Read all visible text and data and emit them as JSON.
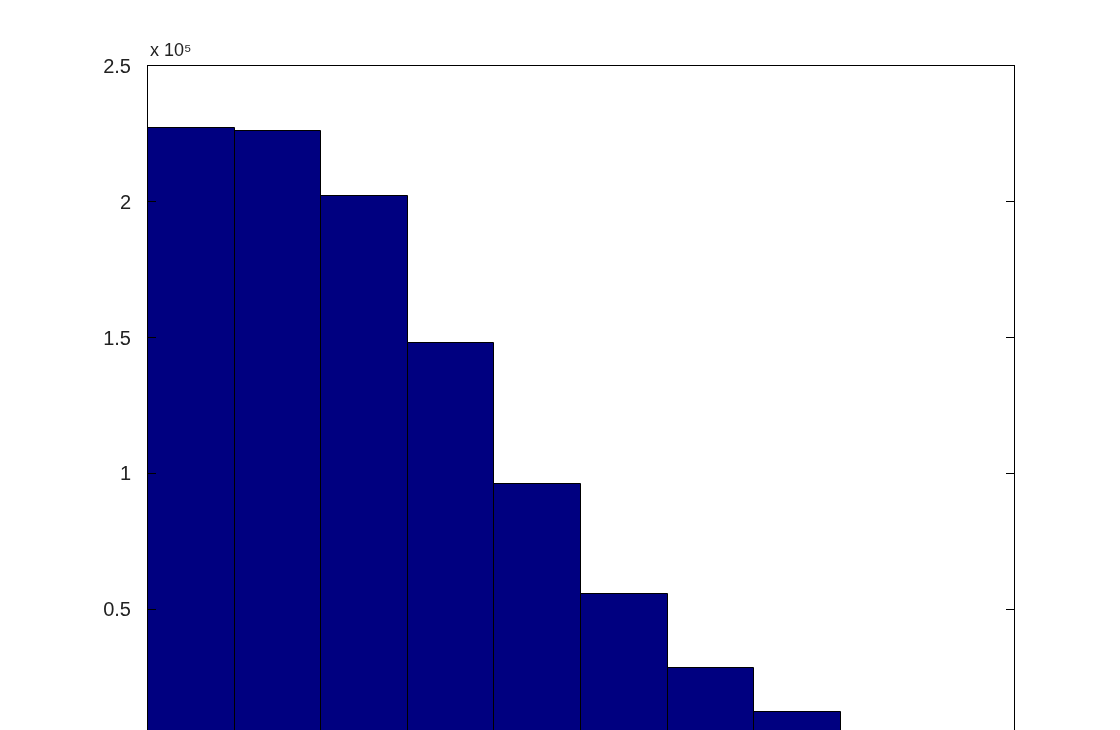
{
  "chart_data": {
    "type": "bar",
    "categories": [
      null,
      null,
      null,
      null,
      null,
      null,
      null,
      null,
      null,
      null
    ],
    "values": [
      2.27,
      2.26,
      2.02,
      1.48,
      0.96,
      0.555,
      0.283,
      0.12,
      null,
      null
    ],
    "color": "#000080",
    "ylim": [
      0.055,
      2.5
    ],
    "yticks": [
      0.5,
      1,
      1.5,
      2,
      2.5
    ],
    "annotations": [
      "x 10⁵"
    ]
  }
}
